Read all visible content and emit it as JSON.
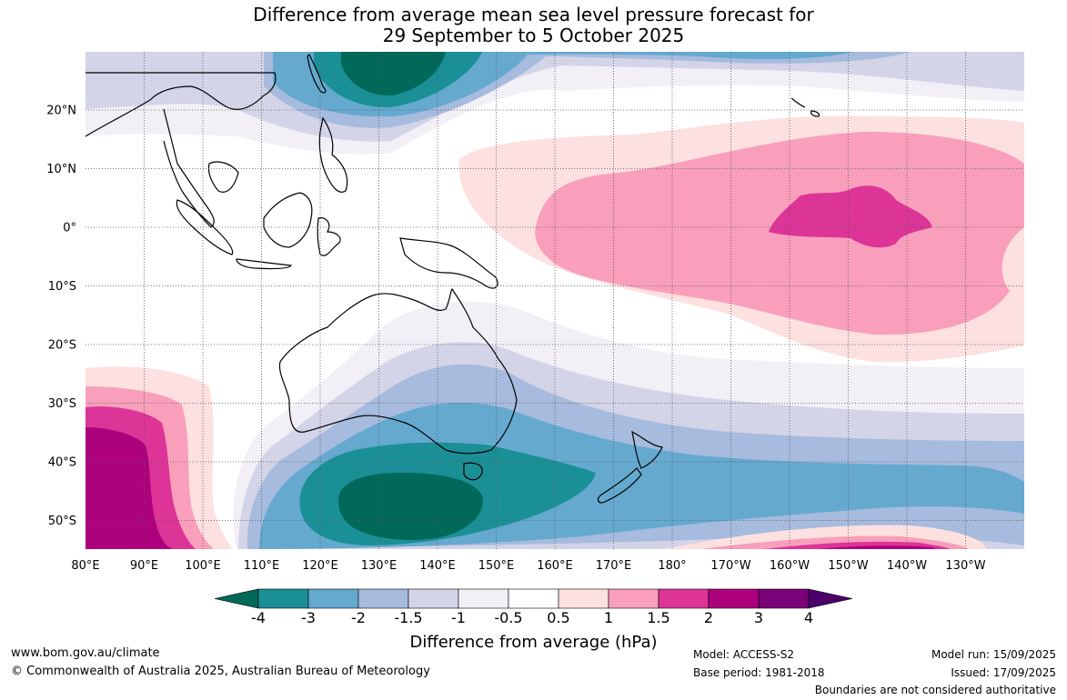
{
  "title": {
    "line1": "Difference from average mean sea level pressure forecast for",
    "line2": "29 September to 5 October 2025"
  },
  "map": {
    "lon_labels": [
      "80°E",
      "90°E",
      "100°E",
      "110°E",
      "120°E",
      "130°E",
      "140°E",
      "150°E",
      "160°E",
      "170°E",
      "180°",
      "170°W",
      "160°W",
      "150°W",
      "140°W",
      "130°W"
    ],
    "lat_labels": [
      "20°N",
      "10°N",
      "0°",
      "10°S",
      "20°S",
      "30°S",
      "40°S",
      "50°S"
    ],
    "lon_range": [
      80,
      235
    ],
    "lat_range": [
      -55,
      30
    ]
  },
  "colorbar": {
    "ticks": [
      "-4",
      "-3",
      "-2",
      "-1.5",
      "-1",
      "-0.5",
      "0.5",
      "1",
      "1.5",
      "2",
      "3",
      "4"
    ],
    "colors": [
      "#00695a",
      "#1a9096",
      "#65a9cf",
      "#a6bbdd",
      "#d3d4e7",
      "#f3eff6",
      "#ffffff",
      "#fde0e0",
      "#f99fbb",
      "#dd3497",
      "#ae017e",
      "#7a0177",
      "#49006a"
    ],
    "label": "Difference from average (hPa)"
  },
  "footer": {
    "website": "www.bom.gov.au/climate",
    "copyright": "© Commonwealth of Australia 2025, Australian Bureau of Meteorology",
    "model": "Model: ACCESS-S2",
    "base_period": "Base period: 1981-2018",
    "model_run": "Model run: 15/09/2025",
    "issued": "Issued: 17/09/2025",
    "disclaimer": "Boundaries are not considered authoritative"
  }
}
